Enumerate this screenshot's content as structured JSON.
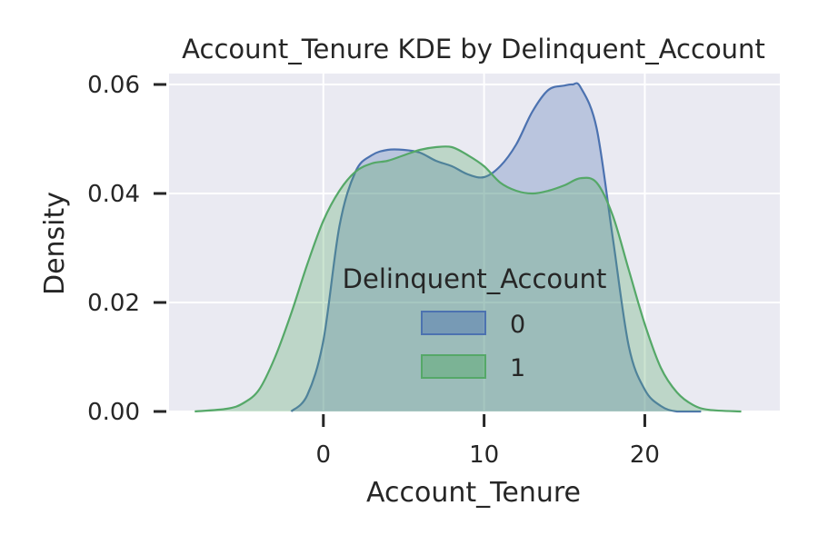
{
  "chart_data": {
    "type": "area",
    "title": "Account_Tenure KDE by Delinquent_Account",
    "xlabel": "Account_Tenure",
    "ylabel": "Density",
    "xlim": [
      -9.6,
      28.4
    ],
    "ylim": [
      0,
      0.062
    ],
    "x_ticks": [
      0,
      10,
      20
    ],
    "y_ticks": [
      0.0,
      0.02,
      0.04,
      0.06
    ],
    "x_tick_labels": [
      "0",
      "10",
      "20"
    ],
    "y_tick_labels": [
      "0.00",
      "0.02",
      "0.04",
      "0.06"
    ],
    "grid": true,
    "background": "#eaeaf2",
    "legend": {
      "title": "Delinquent_Account",
      "placement": "center"
    },
    "series": [
      {
        "name": "0",
        "color": "#4c72b0",
        "x": [
          -2,
          -1,
          0,
          1,
          2,
          3,
          4,
          5,
          6,
          7,
          8,
          9,
          10,
          11,
          12,
          13,
          14,
          15,
          15.5,
          16,
          17,
          18,
          19,
          20,
          21,
          22,
          23.5
        ],
        "y": [
          0.0,
          0.003,
          0.013,
          0.034,
          0.044,
          0.047,
          0.048,
          0.048,
          0.0475,
          0.046,
          0.045,
          0.0435,
          0.043,
          0.045,
          0.049,
          0.055,
          0.059,
          0.0598,
          0.06,
          0.0595,
          0.052,
          0.032,
          0.012,
          0.004,
          0.001,
          0.0,
          0.0
        ]
      },
      {
        "name": "1",
        "color": "#55a868",
        "x": [
          -8,
          -6,
          -5,
          -4,
          -3,
          -2,
          -1,
          0,
          1,
          2,
          3,
          4,
          5,
          6,
          7,
          8,
          9,
          10,
          11,
          12,
          13,
          14,
          15,
          16,
          17,
          18,
          19,
          20,
          21,
          22,
          23,
          24,
          26
        ],
        "y": [
          0.0,
          0.0005,
          0.0015,
          0.004,
          0.01,
          0.018,
          0.027,
          0.035,
          0.0405,
          0.044,
          0.0455,
          0.046,
          0.047,
          0.048,
          0.0485,
          0.0485,
          0.047,
          0.045,
          0.042,
          0.0405,
          0.04,
          0.0405,
          0.0415,
          0.0428,
          0.042,
          0.036,
          0.026,
          0.016,
          0.008,
          0.0035,
          0.0012,
          0.0003,
          0.0
        ]
      }
    ]
  }
}
